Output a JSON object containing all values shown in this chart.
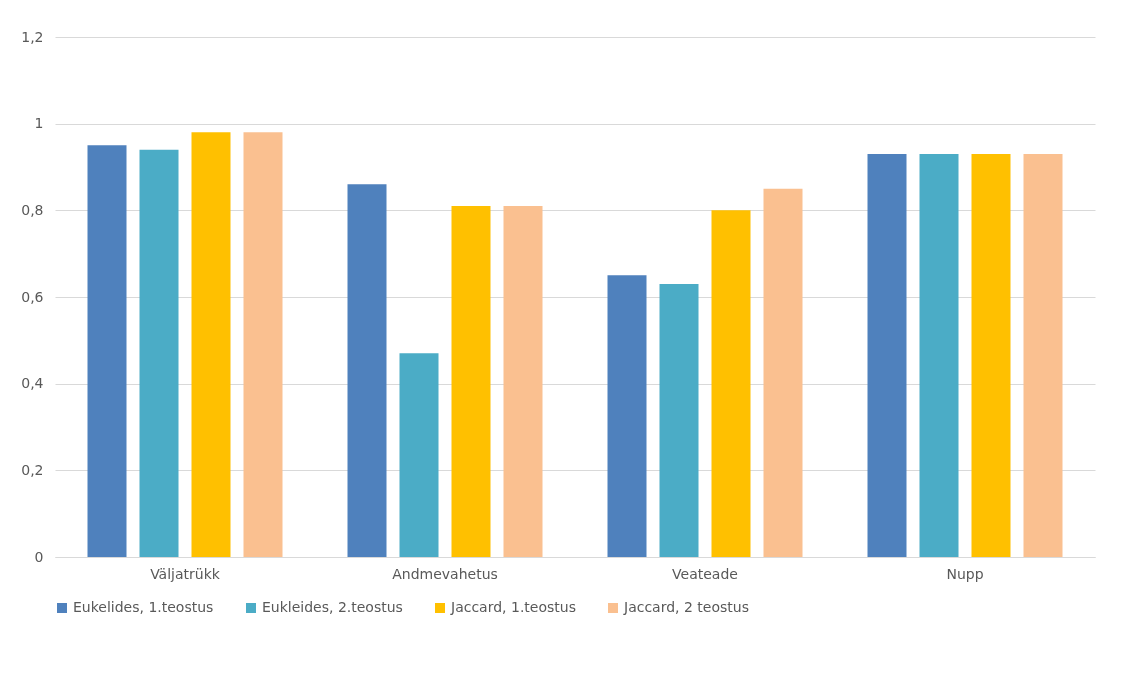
{
  "chart_data": {
    "type": "bar",
    "categories": [
      "Väljatrükk",
      "Andmevahetus",
      "Veateade",
      "Nupp"
    ],
    "series": [
      {
        "name": "Eukelides, 1.teostus",
        "color": "#4f81bd",
        "values": [
          0.95,
          0.86,
          0.65,
          0.93
        ]
      },
      {
        "name": "Eukleides, 2.teostus",
        "color": "#4bacc6",
        "values": [
          0.94,
          0.47,
          0.63,
          0.93
        ]
      },
      {
        "name": "Jaccard, 1.teostus",
        "color": "#ffc000",
        "values": [
          0.98,
          0.81,
          0.8,
          0.93
        ]
      },
      {
        "name": "Jaccard, 2 teostus",
        "color": "#fac090",
        "values": [
          0.98,
          0.81,
          0.85,
          0.93
        ]
      }
    ],
    "ylim": [
      0,
      1.2
    ],
    "yticks": [
      0,
      {
        "value": 0.2,
        "label": "0,2"
      },
      {
        "value": 0.4,
        "label": "0,4"
      },
      {
        "value": 0.6,
        "label": "0,6"
      },
      {
        "value": 0.8,
        "label": "0,8"
      },
      1,
      {
        "value": 1.2,
        "label": "1,2"
      }
    ],
    "grid": "y",
    "legend": "bottom"
  }
}
